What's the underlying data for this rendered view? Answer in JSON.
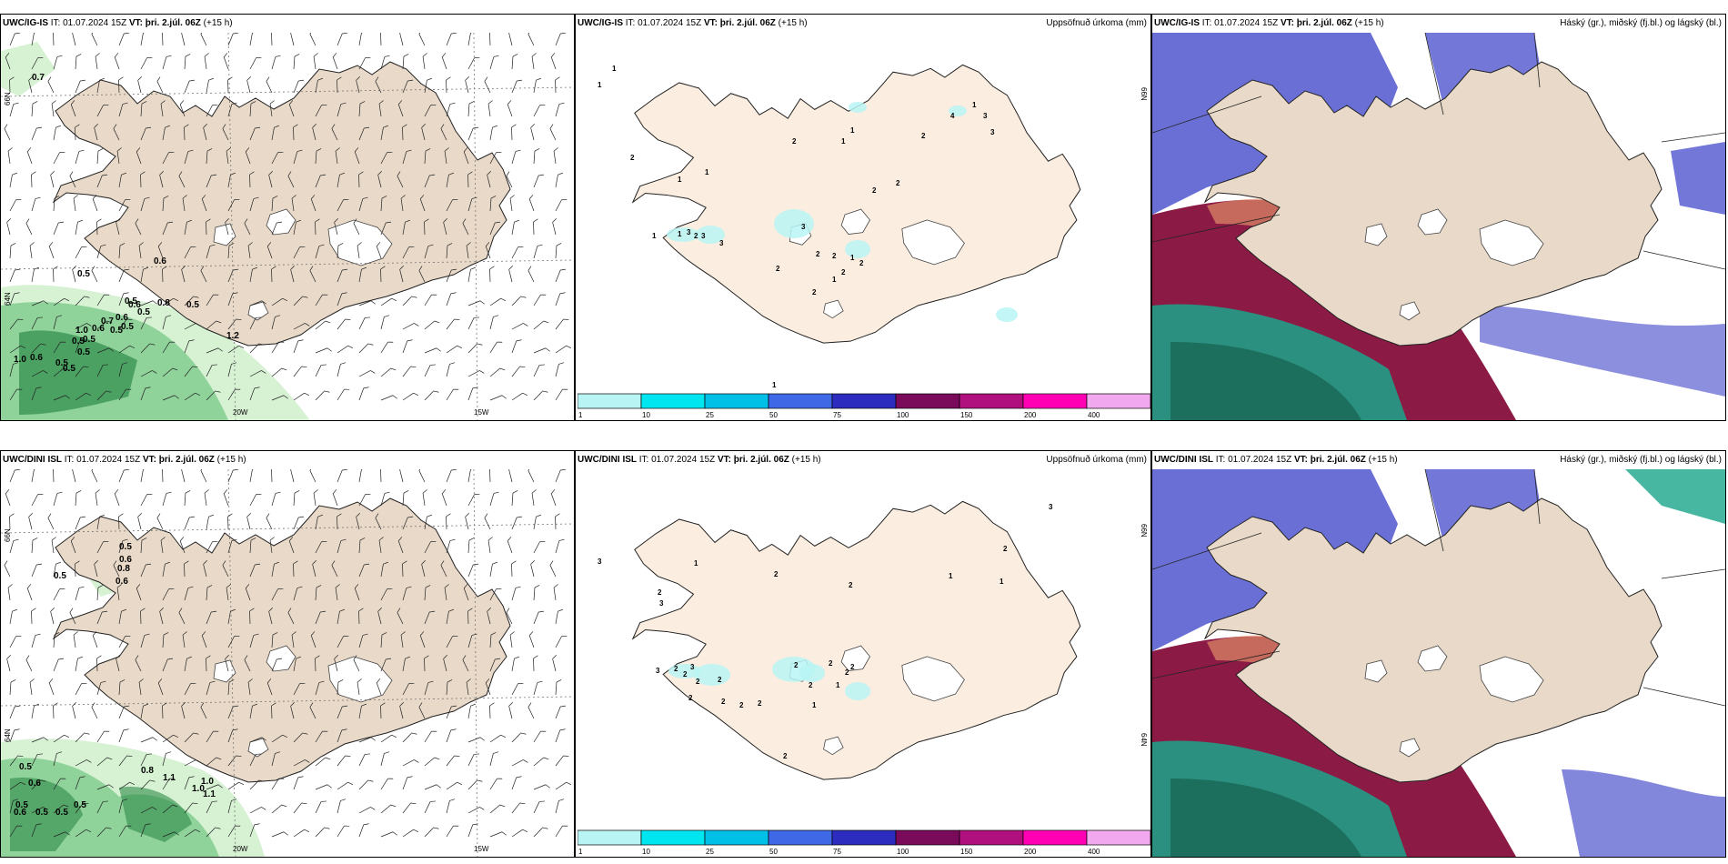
{
  "row_top": {
    "wind_panel": {
      "model": "UWC/IG-IS",
      "it_label": "IT:",
      "it_value": "01.07.2024 15Z",
      "vt_label": "VT:",
      "vt_value": "þri. 2.júl. 06Z",
      "step": "(+15 h)",
      "lat_top": "66N",
      "lat_mid": "64N",
      "lon_1": "20W",
      "lon_2": "15W",
      "cloud_values": [
        "0.7",
        "0.5",
        "0.6",
        "0.5",
        "0.6",
        "0.7",
        "1.0",
        "0.6",
        "0.5",
        "0.8",
        "0.6",
        "0.5",
        "0.5",
        "0.5",
        "0.5",
        "1.2",
        "1.0",
        "0.6",
        "0.5",
        "0.5",
        "0.5",
        "0.5"
      ]
    },
    "precip_panel": {
      "model": "UWC/IG-IS",
      "it_label": "IT:",
      "it_value": "01.07.2024 15Z",
      "vt_label": "VT:",
      "vt_value": "þri. 2.júl. 06Z",
      "step": "(+15 h)",
      "title": "Uppsöfnuð úrkoma (mm)",
      "lat_top": "66N",
      "values": [
        "1",
        "1",
        "2",
        "1",
        "1",
        "1",
        "2",
        "1",
        "4",
        "3",
        "3",
        "2",
        "2",
        "2",
        "1",
        "1",
        "3",
        "2",
        "3",
        "3",
        "3",
        "2",
        "1",
        "2",
        "2",
        "2",
        "2",
        "1",
        "2",
        "1",
        "1"
      ]
    },
    "cloud_panel": {
      "model": "UWC/IG-IS",
      "it_label": "IT:",
      "it_value": "01.07.2024 15Z",
      "vt_label": "VT:",
      "vt_value": "þri. 2.júl. 06Z",
      "step": "(+15 h)",
      "title": "Háský (gr.), miðský (fj.bl.) og lágský (bl.)"
    }
  },
  "row_bottom": {
    "wind_panel": {
      "model": "UWC/DINI ISL",
      "it_label": "IT:",
      "it_value": "01.07.2024 15Z",
      "vt_label": "VT:",
      "vt_value": "þri. 2.júl. 06Z",
      "step": "(+15 h)",
      "lat_top": "66N",
      "lat_mid": "64N",
      "lon_1": "20W",
      "lon_2": "15W",
      "cloud_values": [
        "0.5",
        "0.8",
        "0.6",
        "0.5",
        "0.6",
        "0.5",
        "0.6",
        "0.5",
        "0.6",
        "0.5",
        "0.5",
        "0.5",
        "0.8",
        "1.1",
        "1.0",
        "1.1",
        "1.0"
      ]
    },
    "precip_panel": {
      "model": "UWC/DINI ISL",
      "it_label": "IT:",
      "it_value": "01.07.2024 15Z",
      "vt_label": "VT:",
      "vt_value": "þri. 2.júl. 06Z",
      "step": "(+15 h)",
      "title": "Uppsöfnuð úrkoma (mm)",
      "lat_top": "66N",
      "lat_mid": "64N",
      "values": [
        "1",
        "2",
        "2",
        "2",
        "1",
        "1",
        "2",
        "3",
        "3",
        "3",
        "3",
        "2",
        "3",
        "2",
        "2",
        "2",
        "2",
        "2",
        "2",
        "2",
        "2",
        "2",
        "2",
        "2",
        "1",
        "1",
        "2",
        "2"
      ]
    },
    "cloud_panel": {
      "model": "UWC/DINI ISL",
      "it_label": "IT:",
      "it_value": "01.07.2024 15Z",
      "vt_label": "VT:",
      "vt_value": "þri. 2.júl. 06Z",
      "step": "(+15 h)",
      "title": "Háský (gr.), miðský (fj.bl.) og lágský (bl.)"
    }
  },
  "legend": {
    "ticks": [
      "1",
      "10",
      "25",
      "50",
      "75",
      "100",
      "150",
      "200",
      "400"
    ],
    "colors": [
      "#b8f4f4",
      "#00e6f0",
      "#00c0e8",
      "#3f68e6",
      "#2c2cbf",
      "#7a0a5a",
      "#b0107e",
      "#ff00b4",
      "#f2a8ef"
    ]
  },
  "colors": {
    "land": "#e8d9c8",
    "land_light": "#fbeee0",
    "green_light": "#d6f2d3",
    "green_mid": "#8fd39a",
    "green_dark": "#2e8b4a",
    "blue": "#5a5fd0",
    "maroon": "#8b1b45",
    "teal": "#1aa58a"
  }
}
